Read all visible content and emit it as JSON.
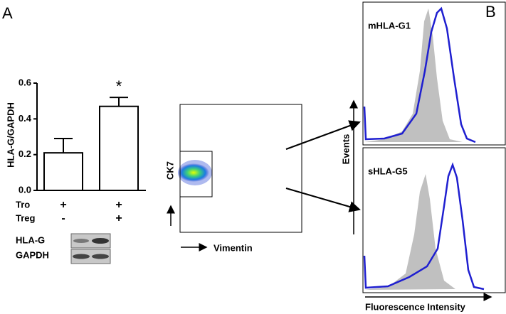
{
  "chart_data": {
    "type": "bar",
    "y_label": "HLA-G/GAPDH",
    "values": [
      0.21,
      0.47
    ],
    "errors": [
      0.08,
      0.05
    ],
    "color": "#ffffff",
    "ylim": [
      0,
      0.6
    ],
    "yticks": [
      {
        "value": 0,
        "label": "0.0"
      },
      0.2,
      0.4,
      0.6
    ],
    "annotation": "*"
  },
  "panels": {
    "a": "A",
    "b": "B"
  },
  "conditions": [
    {
      "label": "Tro",
      "marks": [
        "+",
        "+"
      ]
    },
    {
      "label": "Treg",
      "marks": [
        "-",
        "+"
      ]
    }
  ],
  "blot": {
    "rows": [
      "HLA-G",
      "GAPDH"
    ]
  },
  "flow": {
    "y_label": "CK7",
    "x_label": "Vimentin"
  },
  "histograms": {
    "titles": [
      "mHLA-G1",
      "sHLA-G5"
    ],
    "y_label": "Events",
    "x_label": "Fluorescence Intensity"
  }
}
